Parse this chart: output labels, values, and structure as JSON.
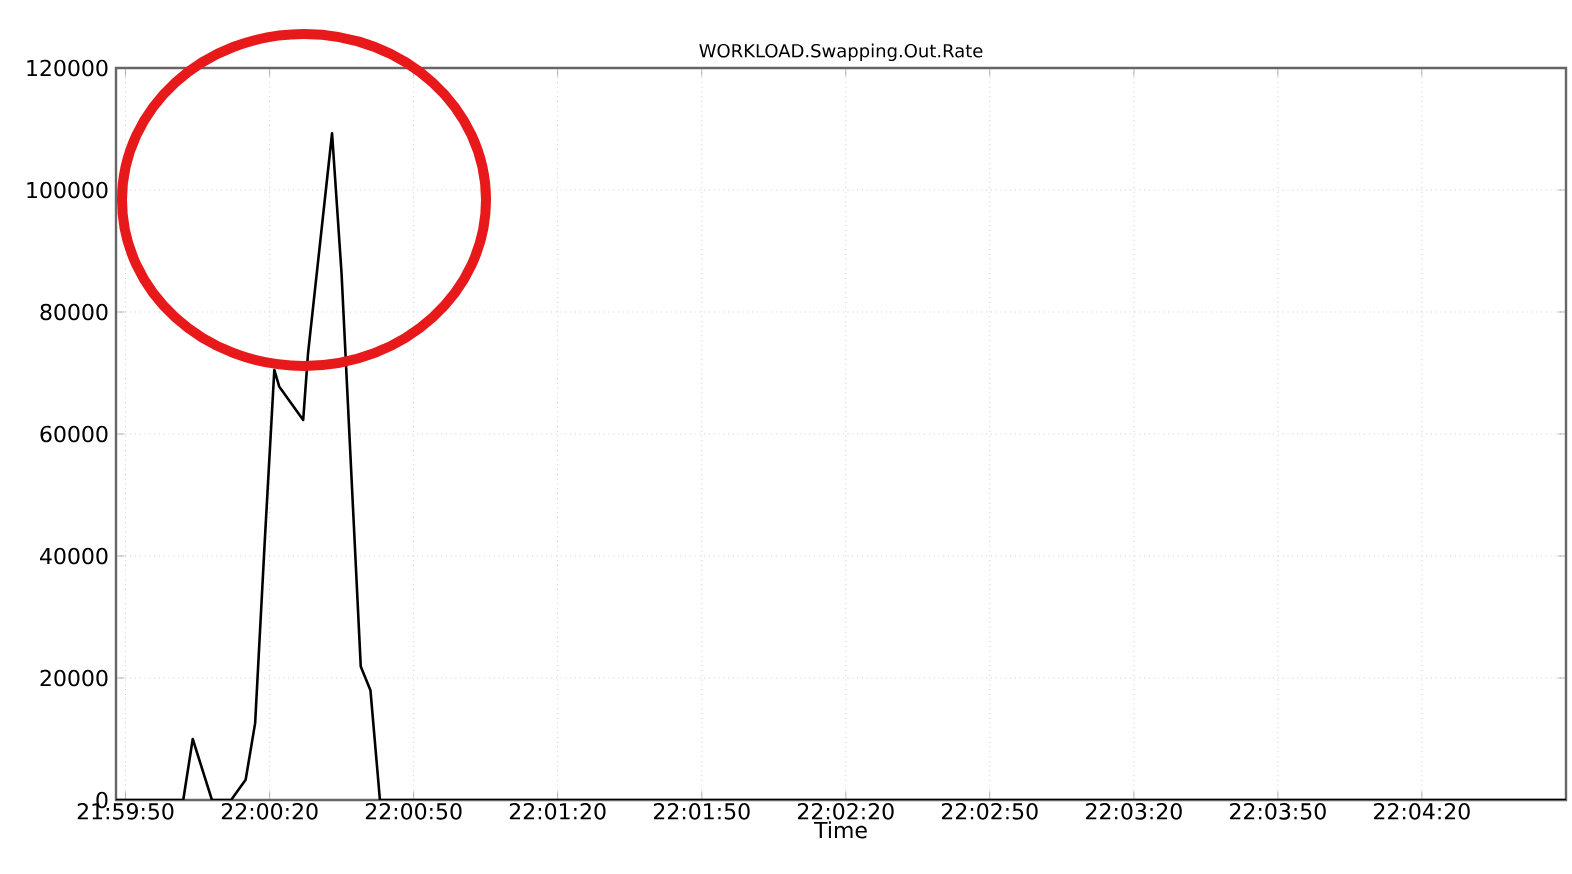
{
  "chart_data": {
    "type": "line",
    "title": "WORKLOAD.Swapping.Out.Rate",
    "xlabel": "Time",
    "x": [
      21.99667,
      22.00056,
      22.00111,
      22.00222,
      22.00333,
      22.00417,
      22.00472,
      22.00528,
      22.00583,
      22.00611,
      22.0075,
      22.00778,
      22.00917,
      22.00972,
      22.01083,
      22.01139,
      22.01194,
      22.08056
    ],
    "values": [
      0,
      0,
      10000,
      0,
      0,
      3300,
      12600,
      42600,
      70500,
      67800,
      62300,
      73200,
      109300,
      86300,
      21900,
      18000,
      0,
      0
    ],
    "color": "#000000",
    "xlim": [
      21.99667,
      22.08056
    ],
    "xticks": [
      {
        "value": 21.99722,
        "label": "21:59:50"
      },
      {
        "value": 22.00556,
        "label": "22:00:20"
      },
      {
        "value": 22.01389,
        "label": "22:00:50"
      },
      {
        "value": 22.02222,
        "label": "22:01:20"
      },
      {
        "value": 22.03056,
        "label": "22:01:50"
      },
      {
        "value": 22.03889,
        "label": "22:02:20"
      },
      {
        "value": 22.04722,
        "label": "22:02:50"
      },
      {
        "value": 22.05556,
        "label": "22:03:20"
      },
      {
        "value": 22.06389,
        "label": "22:03:50"
      },
      {
        "value": 22.07222,
        "label": "22:04:20"
      }
    ],
    "ylim": [
      0,
      120000
    ],
    "yticks": [
      0,
      20000,
      40000,
      60000,
      80000,
      100000,
      120000
    ],
    "grid": true
  }
}
